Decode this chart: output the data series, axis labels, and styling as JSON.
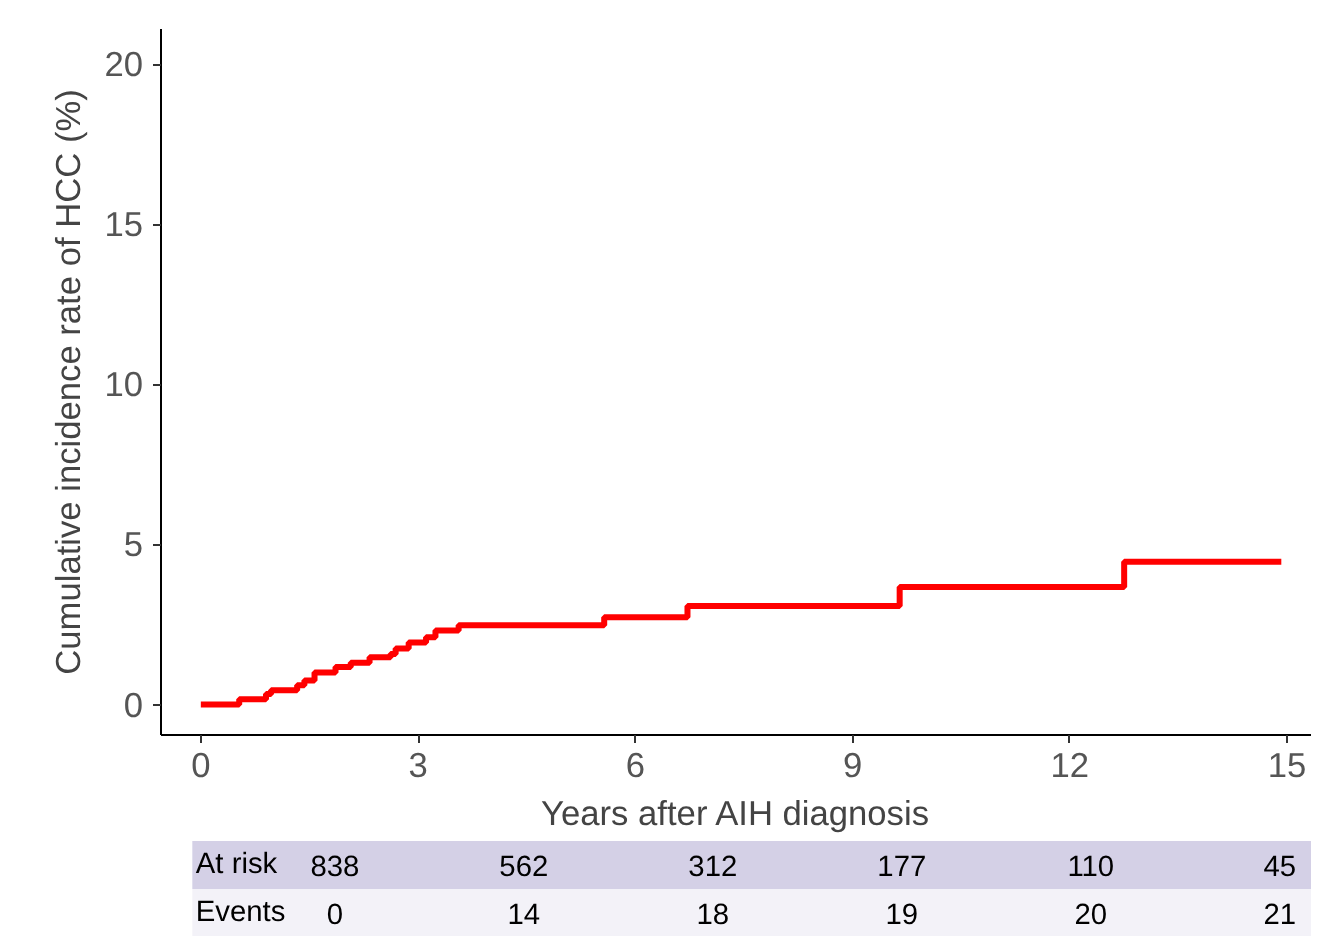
{
  "chart_data": {
    "type": "step",
    "xlabel": "Years after AIH diagnosis",
    "ylabel": "Cumulative incidence rate of HCC (%)",
    "x": [
      0,
      0.53,
      0.9,
      0.97,
      1.33,
      1.43,
      1.57,
      1.86,
      2.07,
      2.33,
      2.62,
      2.69,
      2.87,
      3.11,
      3.24,
      3.56,
      5.57,
      6.72,
      9.65,
      12.75,
      14.92
    ],
    "series": [
      {
        "color": "#ff0000",
        "values": [
          0,
          0.17,
          0.33,
          0.45,
          0.6,
          0.75,
          1.0,
          1.17,
          1.31,
          1.48,
          1.58,
          1.75,
          1.94,
          2.1,
          2.31,
          2.48,
          2.73,
          3.08,
          3.67,
          4.46,
          4.46
        ]
      }
    ],
    "xlim": [
      -0.55,
      15.33
    ],
    "ylim": [
      -0.95,
      21.1
    ],
    "xticks": [
      0,
      3,
      6,
      9,
      12,
      15
    ],
    "yticks": [
      0,
      5,
      10,
      15,
      20
    ],
    "grid": false,
    "annotations": [
      "At risk",
      "838",
      "562",
      "312",
      "177",
      "110",
      "45",
      "Events",
      "0",
      "14",
      "18",
      "19",
      "20",
      "21"
    ]
  }
}
